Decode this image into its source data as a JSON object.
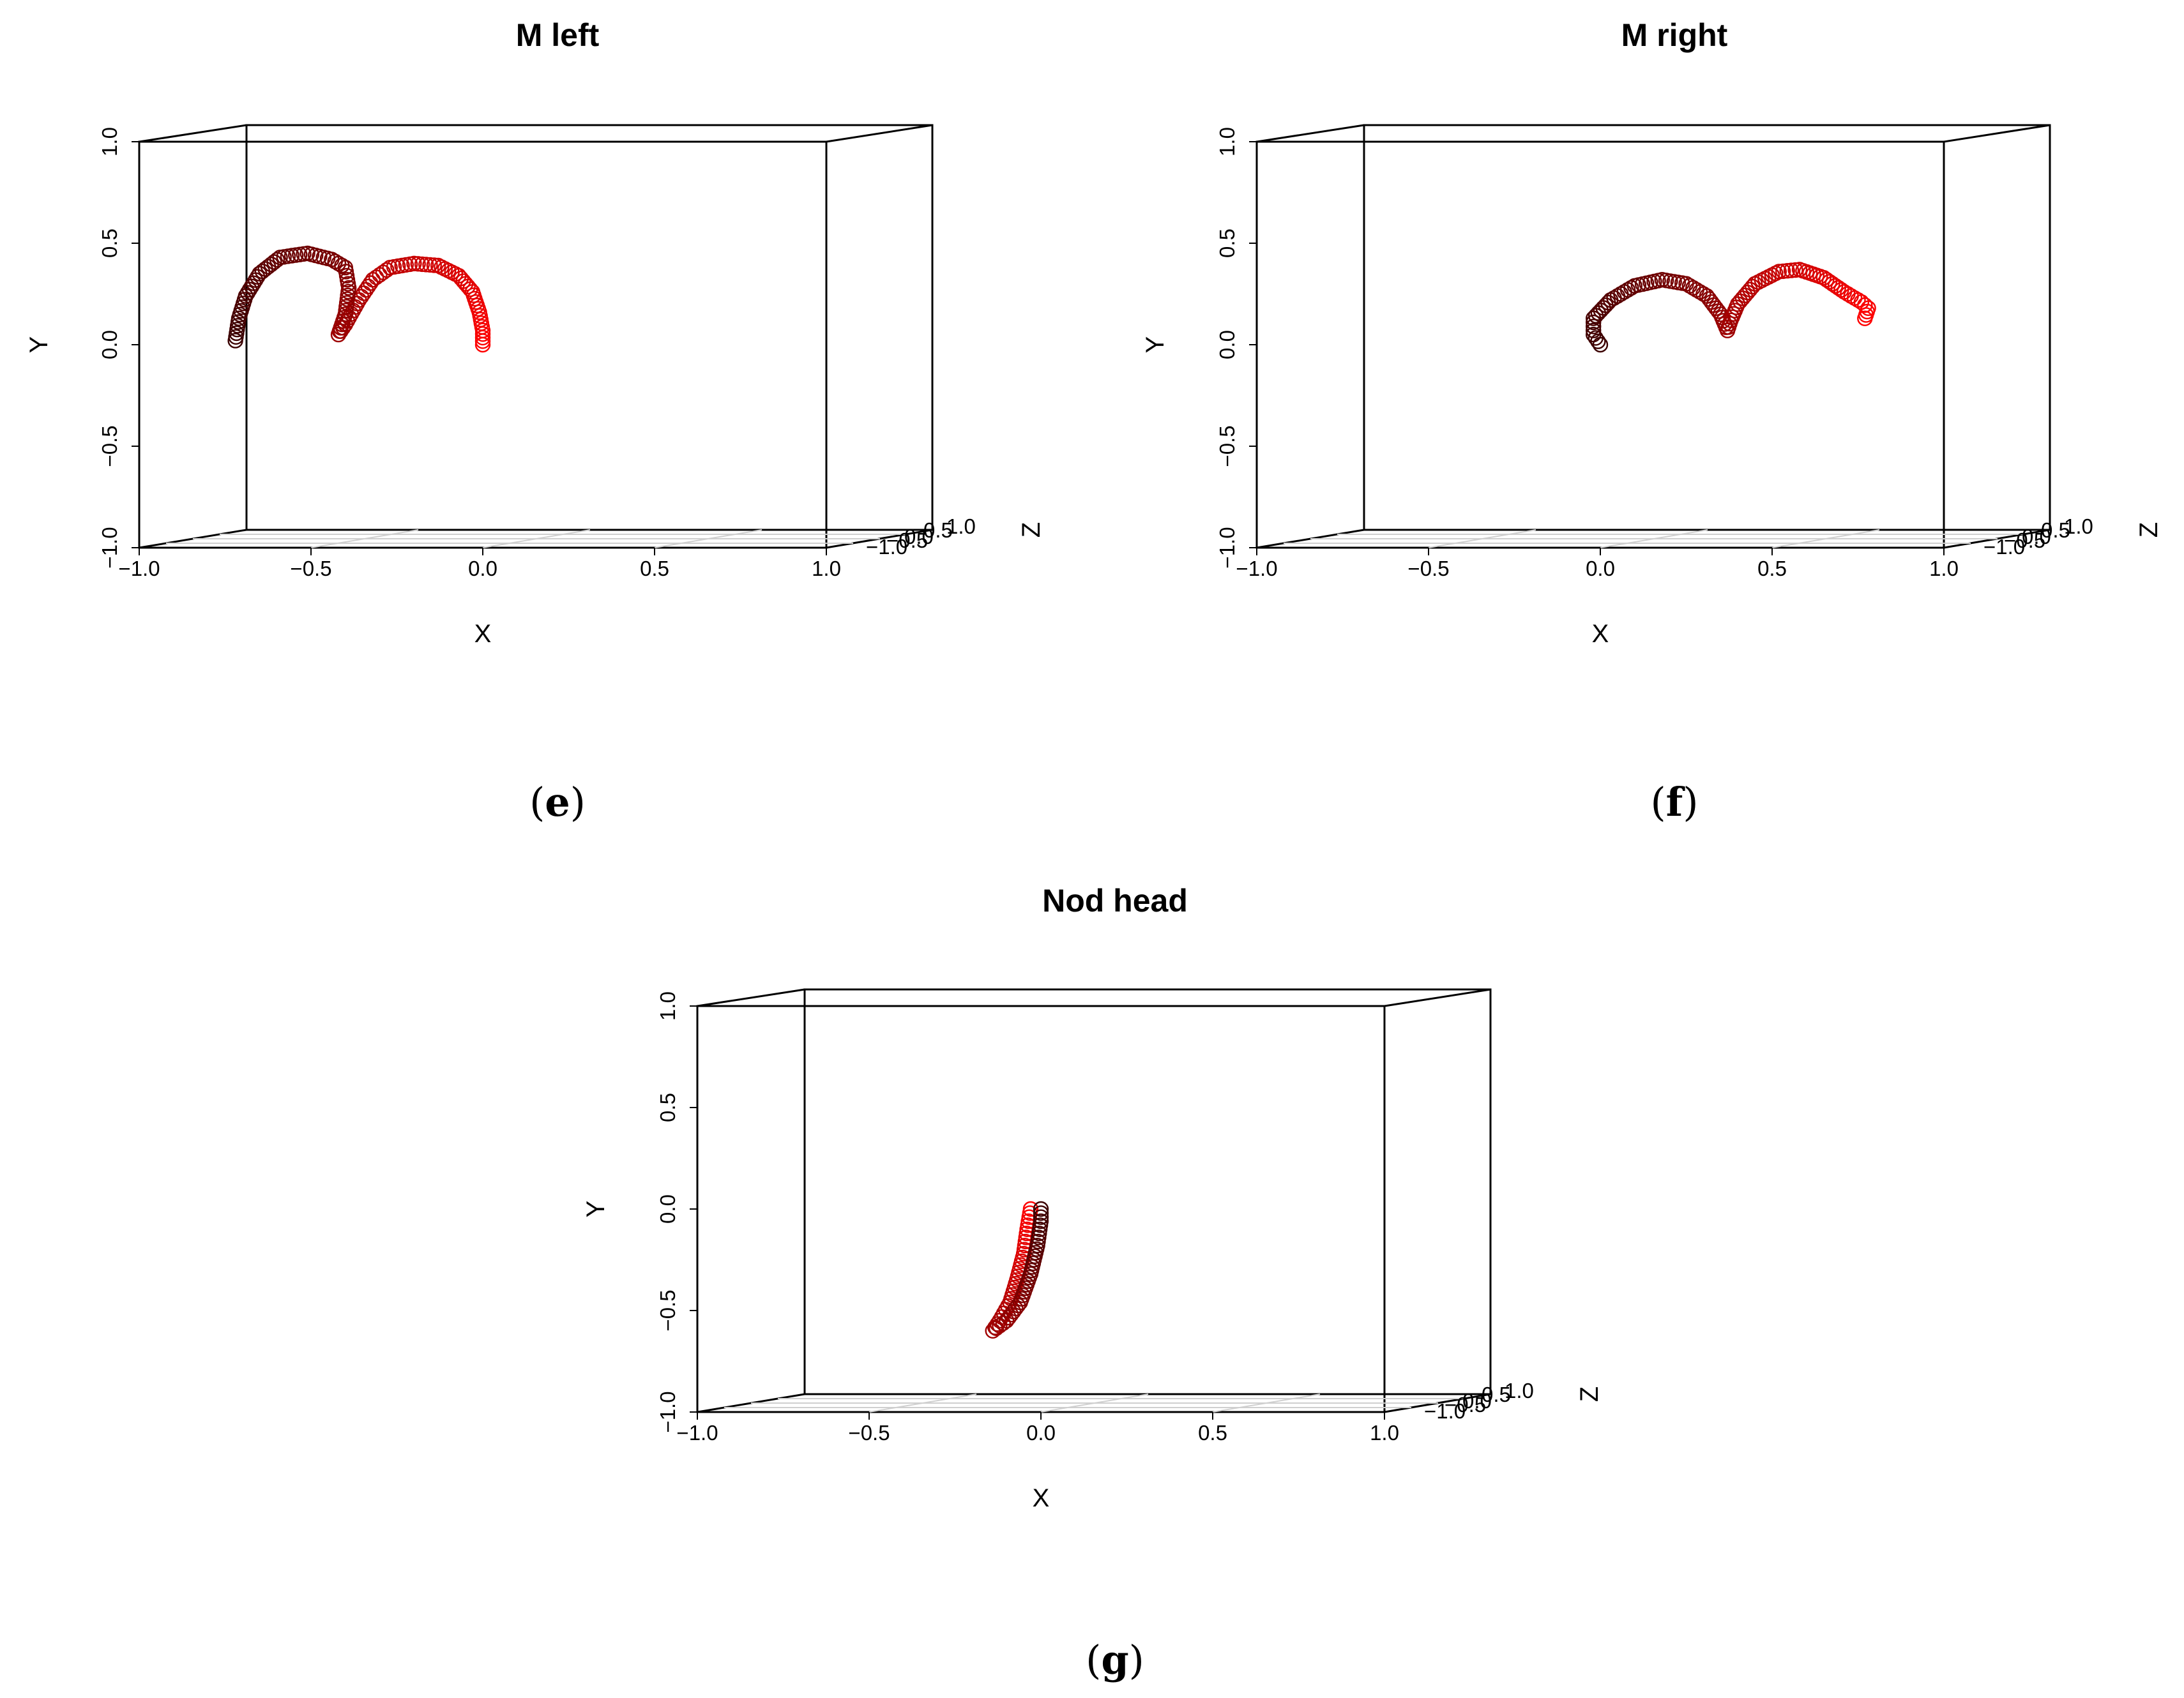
{
  "figure": {
    "panels": [
      {
        "caption_letter": "e"
      },
      {
        "caption_letter": "f"
      },
      {
        "caption_letter": "g"
      }
    ]
  },
  "chart_data": [
    {
      "type": "scatter3d",
      "title": "M left",
      "xlabel": "X",
      "ylabel": "Y",
      "zlabel": "Z",
      "xlim": [
        -1.0,
        1.0
      ],
      "ylim": [
        -1.0,
        1.0
      ],
      "zlim": [
        -1.0,
        1.0
      ],
      "x_ticks": [
        "−1.0",
        "−0.5",
        "0.0",
        "0.5",
        "1.0"
      ],
      "y_ticks": [
        "−1.0",
        "−0.5",
        "0.0",
        "0.5",
        "1.0"
      ],
      "z_ticks": [
        "−1.0",
        "−0.5",
        "0.0",
        "0.5",
        "1.0"
      ],
      "colors": {
        "start": "#ff0000",
        "end": "#3a0000"
      },
      "trajectory_xy": [
        [
          0.0,
          0.0
        ],
        [
          0.0,
          0.07
        ],
        [
          -0.01,
          0.16
        ],
        [
          -0.03,
          0.26
        ],
        [
          -0.07,
          0.34
        ],
        [
          -0.13,
          0.39
        ],
        [
          -0.2,
          0.4
        ],
        [
          -0.27,
          0.38
        ],
        [
          -0.32,
          0.32
        ],
        [
          -0.36,
          0.22
        ],
        [
          -0.4,
          0.1
        ],
        [
          -0.42,
          0.05
        ],
        [
          -0.4,
          0.15
        ],
        [
          -0.39,
          0.28
        ],
        [
          -0.4,
          0.38
        ],
        [
          -0.44,
          0.42
        ],
        [
          -0.51,
          0.45
        ],
        [
          -0.59,
          0.43
        ],
        [
          -0.65,
          0.35
        ],
        [
          -0.69,
          0.24
        ],
        [
          -0.71,
          0.13
        ],
        [
          -0.72,
          0.02
        ]
      ]
    },
    {
      "type": "scatter3d",
      "title": "M right",
      "xlabel": "X",
      "ylabel": "Y",
      "zlabel": "Z",
      "xlim": [
        -1.0,
        1.0
      ],
      "ylim": [
        -1.0,
        1.0
      ],
      "zlim": [
        -1.0,
        1.0
      ],
      "x_ticks": [
        "−1.0",
        "−0.5",
        "0.0",
        "0.5",
        "1.0"
      ],
      "y_ticks": [
        "−1.0",
        "−0.5",
        "0.0",
        "0.5",
        "1.0"
      ],
      "z_ticks": [
        "−1.0",
        "−0.5",
        "0.0",
        "0.5",
        "1.0"
      ],
      "colors": {
        "start": "#3a0000",
        "end": "#ff0000"
      },
      "trajectory_xy": [
        [
          0.0,
          0.0
        ],
        [
          -0.02,
          0.05
        ],
        [
          -0.02,
          0.13
        ],
        [
          0.03,
          0.22
        ],
        [
          0.1,
          0.29
        ],
        [
          0.18,
          0.32
        ],
        [
          0.25,
          0.3
        ],
        [
          0.31,
          0.24
        ],
        [
          0.35,
          0.15
        ],
        [
          0.37,
          0.07
        ],
        [
          0.38,
          0.12
        ],
        [
          0.4,
          0.2
        ],
        [
          0.45,
          0.3
        ],
        [
          0.52,
          0.36
        ],
        [
          0.58,
          0.37
        ],
        [
          0.65,
          0.33
        ],
        [
          0.71,
          0.26
        ],
        [
          0.76,
          0.21
        ],
        [
          0.78,
          0.18
        ],
        [
          0.77,
          0.13
        ]
      ]
    },
    {
      "type": "scatter3d",
      "title": "Nod head",
      "xlabel": "X",
      "ylabel": "Y",
      "zlabel": "Z",
      "xlim": [
        -1.0,
        1.0
      ],
      "ylim": [
        -1.0,
        1.0
      ],
      "zlim": [
        -1.0,
        1.0
      ],
      "x_ticks": [
        "−1.0",
        "−0.5",
        "0.0",
        "0.5",
        "1.0"
      ],
      "y_ticks": [
        "−1.0",
        "−0.5",
        "0.0",
        "0.5",
        "1.0"
      ],
      "z_ticks": [
        "−1.0",
        "−0.5",
        "0.0",
        "0.5",
        "1.0"
      ],
      "colors": {
        "start": "#ff0000",
        "end": "#3a0000"
      },
      "trajectory_xy": [
        [
          -0.03,
          0.0
        ],
        [
          -0.04,
          -0.1
        ],
        [
          -0.05,
          -0.22
        ],
        [
          -0.07,
          -0.35
        ],
        [
          -0.09,
          -0.46
        ],
        [
          -0.12,
          -0.55
        ],
        [
          -0.14,
          -0.6
        ],
        [
          -0.1,
          -0.55
        ],
        [
          -0.06,
          -0.46
        ],
        [
          -0.03,
          -0.32
        ],
        [
          -0.01,
          -0.18
        ],
        [
          0.0,
          -0.06
        ],
        [
          0.0,
          0.0
        ]
      ]
    }
  ]
}
